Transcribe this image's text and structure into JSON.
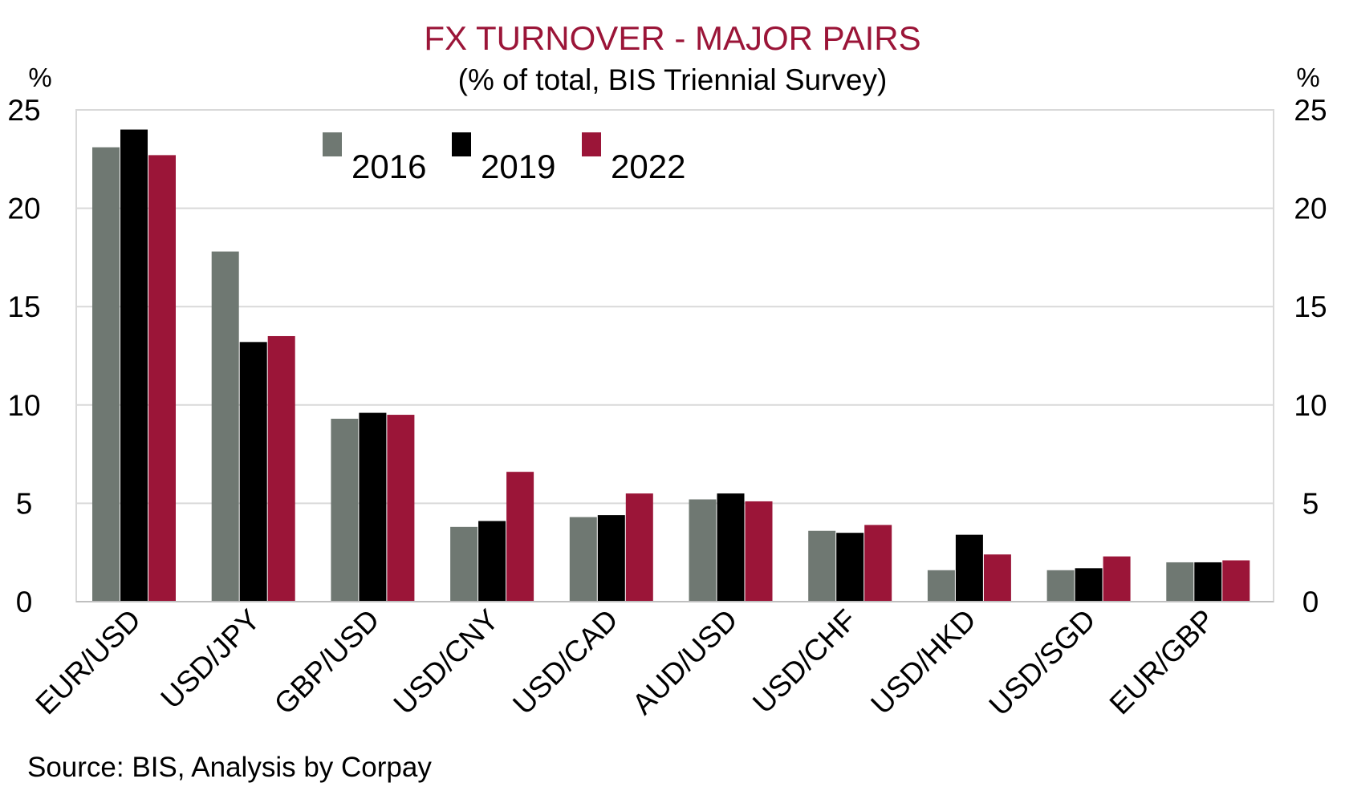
{
  "chart_data": {
    "type": "bar",
    "title": "FX TURNOVER - MAJOR PAIRS",
    "subtitle": "(% of total, BIS Triennial Survey)",
    "ylabel_left": "%",
    "ylabel_right": "%",
    "ylim": [
      0,
      25
    ],
    "yticks": [
      "0",
      "5",
      "10",
      "15",
      "20",
      "25"
    ],
    "grid": true,
    "legend_position": "top-center",
    "categories": [
      "EUR/USD",
      "USD/JPY",
      "GBP/USD",
      "USD/CNY",
      "USD/CAD",
      "AUD/USD",
      "USD/CHF",
      "USD/HKD",
      "USD/SGD",
      "EUR/GBP"
    ],
    "series": [
      {
        "name": "2016",
        "color": "#6f7872",
        "values": [
          23.1,
          17.8,
          9.3,
          3.8,
          4.3,
          5.2,
          3.6,
          1.6,
          1.6,
          2.0
        ]
      },
      {
        "name": "2019",
        "color": "#000000",
        "values": [
          24.0,
          13.2,
          9.6,
          4.1,
          4.4,
          5.5,
          3.5,
          3.4,
          1.7,
          2.0
        ]
      },
      {
        "name": "2022",
        "color": "#9b1538",
        "values": [
          22.7,
          13.5,
          9.5,
          6.6,
          5.5,
          5.1,
          3.9,
          2.4,
          2.3,
          2.1
        ]
      }
    ],
    "source": "Source: BIS, Analysis by Corpay"
  },
  "colors": {
    "title": "#9b1538",
    "grid": "#d9d9d9",
    "axis": "#bfbfbf"
  }
}
